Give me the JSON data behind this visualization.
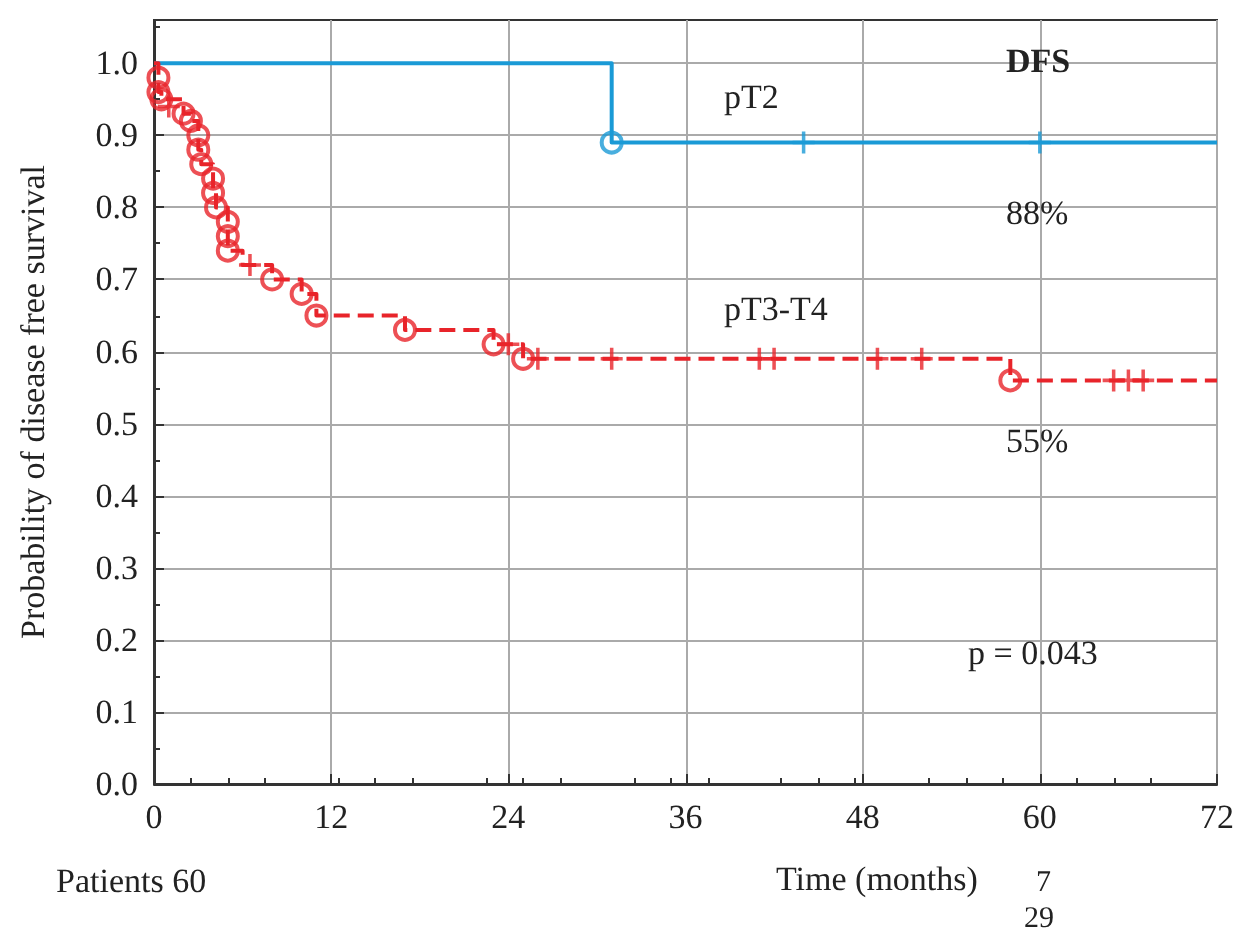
{
  "chart_data": {
    "type": "step",
    "xlabel": "Time (months)",
    "ylabel": "Probability of disease free survival",
    "xlim": [
      0,
      72
    ],
    "xticks": [
      0,
      12,
      24,
      36,
      48,
      60,
      72
    ],
    "ylim": [
      0,
      1.06
    ],
    "yticks": [
      {
        "value": 0,
        "label": "0.0"
      },
      {
        "value": 0.1,
        "label": "0.1"
      },
      {
        "value": 0.2,
        "label": "0.2"
      },
      {
        "value": 0.3,
        "label": "0.3"
      },
      {
        "value": 0.4,
        "label": "0.4"
      },
      {
        "value": 0.5,
        "label": "0.5"
      },
      {
        "value": 0.6,
        "label": "0.6"
      },
      {
        "value": 0.7,
        "label": "0.7"
      },
      {
        "value": 0.8,
        "label": "0.8"
      },
      {
        "value": 0.9,
        "label": "0.9"
      },
      {
        "value": 1,
        "label": "1.0"
      }
    ],
    "grid": true,
    "series": [
      {
        "color": "#1a9ad6",
        "line_style": "solid",
        "marker": "none",
        "x": [
          0,
          31,
          72
        ],
        "values": [
          1,
          0.89,
          0.89
        ]
      },
      {
        "type": "scatter",
        "color": "#1a9ad6",
        "marker": "circle",
        "x": [
          31
        ],
        "values": [
          0.89
        ]
      },
      {
        "type": "scatter",
        "color": "#1a9ad6",
        "marker": "cross",
        "x": [
          44,
          60
        ],
        "values": [
          0.89,
          0.89
        ]
      },
      {
        "color": "#e8242a",
        "line_style": "dashed",
        "marker": "none",
        "x": [
          0,
          0.3,
          0.3,
          0.5,
          2,
          2.5,
          3,
          3,
          3.2,
          4,
          4,
          4.2,
          5,
          5,
          5,
          6,
          8,
          10,
          11,
          17,
          23,
          25,
          58,
          72
        ],
        "values": [
          1,
          0.98,
          0.96,
          0.95,
          0.93,
          0.92,
          0.9,
          0.88,
          0.86,
          0.84,
          0.82,
          0.8,
          0.78,
          0.76,
          0.74,
          0.72,
          0.7,
          0.68,
          0.65,
          0.63,
          0.61,
          0.59,
          0.56,
          0.56
        ]
      },
      {
        "type": "scatter",
        "color": "#e8242a",
        "marker": "circle",
        "x": [
          0.3,
          0.3,
          0.5,
          2,
          2.5,
          3,
          3,
          3.2,
          4,
          4,
          4.2,
          5,
          5,
          5,
          8,
          10,
          11,
          17,
          23,
          25,
          58
        ],
        "values": [
          0.98,
          0.96,
          0.95,
          0.93,
          0.92,
          0.9,
          0.88,
          0.86,
          0.84,
          0.82,
          0.8,
          0.78,
          0.76,
          0.74,
          0.7,
          0.68,
          0.65,
          0.63,
          0.61,
          0.59,
          0.56
        ]
      },
      {
        "type": "scatter",
        "color": "#e8242a",
        "marker": "cross",
        "x": [
          1,
          6.5,
          24,
          26,
          31,
          41,
          42,
          49,
          52,
          65,
          66,
          67
        ],
        "values": [
          0.94,
          0.72,
          0.61,
          0.59,
          0.59,
          0.59,
          0.59,
          0.59,
          0.59,
          0.56,
          0.56,
          0.56
        ]
      }
    ],
    "annotations": [
      "pT2",
      "88%",
      "pT3-T4",
      "55%",
      "DFS",
      "p = 0.043",
      "Patients 60",
      "7",
      "29"
    ]
  }
}
